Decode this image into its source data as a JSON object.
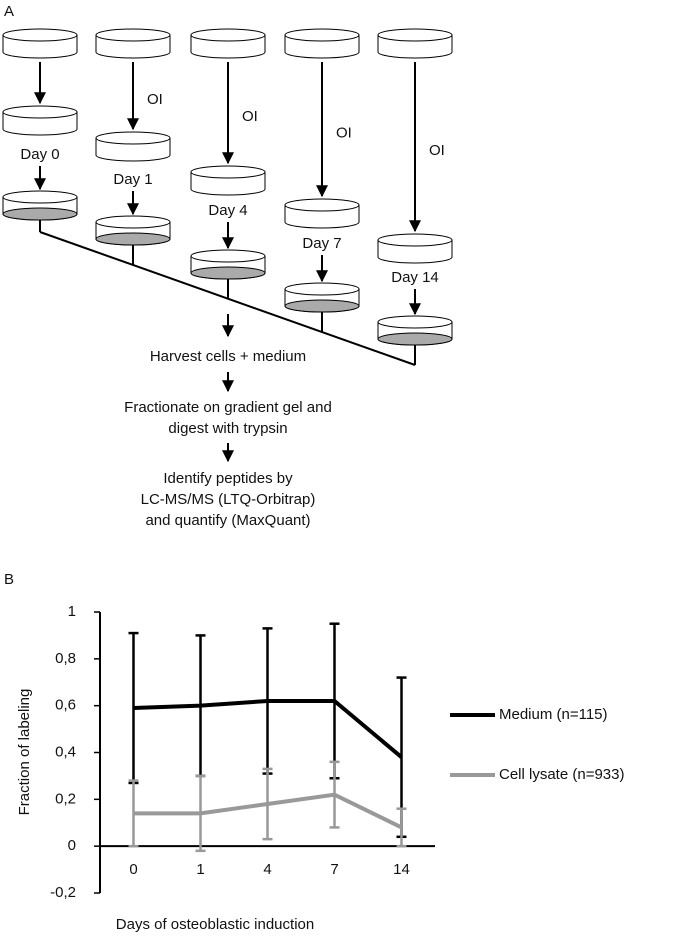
{
  "panel_a": {
    "label": "A",
    "oi_labels": [
      "OI",
      "OI",
      "OI",
      "OI"
    ],
    "day_labels": [
      "Day 0",
      "Day 1",
      "Day 4",
      "Day 7",
      "Day 14"
    ],
    "steps": [
      "Harvest cells + medium",
      "Fractionate on gradient gel and",
      "digest with trypsin",
      "Identify peptides by",
      "LC-MS/MS (LTQ-Orbitrap)",
      "and quantify (MaxQuant)"
    ]
  },
  "chart_data": {
    "type": "line",
    "panel_label": "B",
    "x_label": "Days of osteoblastic induction",
    "y_label": "Fraction of labeling",
    "categories": [
      "0",
      "1",
      "4",
      "7",
      "14"
    ],
    "series": [
      {
        "name": "Medium (n=115)",
        "color": "#000000",
        "values": [
          0.59,
          0.6,
          0.62,
          0.62,
          0.38
        ],
        "errors": [
          0.32,
          0.3,
          0.31,
          0.33,
          0.34
        ]
      },
      {
        "name": "Cell lysate (n=933)",
        "color": "#999999",
        "values": [
          0.14,
          0.14,
          0.18,
          0.22,
          0.08
        ],
        "errors": [
          0.14,
          0.16,
          0.15,
          0.14,
          0.08
        ]
      }
    ],
    "ylim": [
      -0.2,
      1
    ],
    "yticks": [
      {
        "value": -0.2,
        "label": "-0,2"
      },
      0,
      {
        "value": 0.2,
        "label": "0,2"
      },
      {
        "value": 0.4,
        "label": "0,4"
      },
      {
        "value": 0.6,
        "label": "0,6"
      },
      {
        "value": 0.8,
        "label": "0,8"
      },
      1
    ],
    "legend": "right"
  }
}
